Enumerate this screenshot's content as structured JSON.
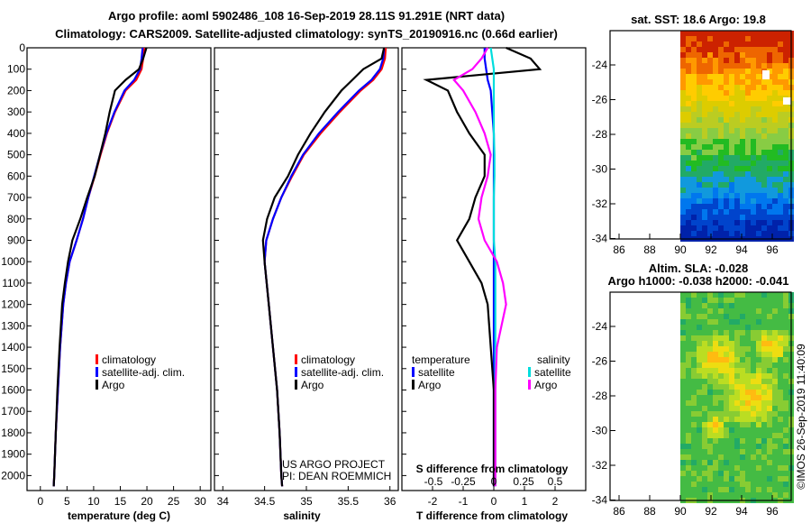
{
  "title_line1": "Argo profile: aoml 5902486_108 16-Sep-2019 28.11S 91.291E (NRT data)",
  "title_line2": "Climatology: CARS2009. Satellite-adjusted climatology: synTS_20190916.nc (0.66d earlier)",
  "depth_ticks": [
    0,
    100,
    200,
    300,
    400,
    500,
    600,
    700,
    800,
    900,
    1000,
    1100,
    1200,
    1300,
    1400,
    1500,
    1600,
    1700,
    1800,
    1900,
    2000
  ],
  "panels": {
    "temperature": {
      "xlabel": "temperature (deg C)",
      "xticks": [
        "0",
        "5",
        "10",
        "15",
        "20",
        "25",
        "30"
      ],
      "xlim": [
        -2.5,
        32
      ],
      "legend": [
        "climatology",
        "satellite-adj. clim.",
        "Argo"
      ],
      "chart_data": {
        "type": "line",
        "y_depth_dbar": [
          0,
          50,
          100,
          150,
          200,
          300,
          400,
          500,
          600,
          700,
          800,
          900,
          1000,
          1100,
          1200,
          1400,
          1600,
          1800,
          2000,
          2050
        ],
        "series": [
          {
            "name": "climatology",
            "color": "#ff0000",
            "x": [
              19.5,
              19.3,
              19.0,
              18.0,
              16.0,
              14.0,
              12.5,
              11.3,
              10.2,
              9.0,
              8.0,
              6.8,
              5.5,
              4.8,
              4.3,
              3.7,
              3.3,
              2.9,
              2.6,
              2.5
            ]
          },
          {
            "name": "satellite-adj. clim.",
            "color": "#0000ff",
            "x": [
              19.2,
              19.0,
              18.7,
              17.6,
              15.8,
              13.9,
              12.4,
              11.2,
              10.1,
              9.0,
              8.0,
              6.8,
              5.5,
              4.8,
              4.3,
              3.7,
              3.3,
              2.9,
              2.6,
              2.5
            ]
          },
          {
            "name": "Argo",
            "color": "#000000",
            "x": [
              19.9,
              19.3,
              18.5,
              16.0,
              14.0,
              13.0,
              12.2,
              11.2,
              10.2,
              8.8,
              7.5,
              6.0,
              5.2,
              4.6,
              4.1,
              3.6,
              3.2,
              2.9,
              2.6,
              2.5
            ]
          }
        ]
      }
    },
    "salinity": {
      "xlabel": "salinity",
      "xticks": [
        "34",
        "34.5",
        "35",
        "35.5",
        "36"
      ],
      "xlim": [
        33.9,
        36.1
      ],
      "legend": [
        "climatology",
        "satellite-adj. clim.",
        "Argo"
      ],
      "credit1": "US ARGO PROJECT",
      "credit2": "PI: DEAN ROEMMICH",
      "chart_data": {
        "type": "line",
        "y_depth_dbar": [
          0,
          50,
          100,
          150,
          200,
          300,
          400,
          500,
          600,
          700,
          800,
          900,
          1000,
          1200,
          1400,
          1600,
          1800,
          2000,
          2050
        ],
        "series": [
          {
            "name": "climatology",
            "color": "#ff0000",
            "x": [
              35.95,
              35.94,
              35.9,
              35.8,
              35.65,
              35.4,
              35.17,
              34.97,
              34.83,
              34.7,
              34.6,
              34.52,
              34.5,
              34.55,
              34.6,
              34.65,
              34.68,
              34.7,
              34.71
            ]
          },
          {
            "name": "satellite-adj. clim.",
            "color": "#0000ff",
            "x": [
              35.93,
              35.92,
              35.88,
              35.78,
              35.63,
              35.38,
              35.15,
              34.96,
              34.82,
              34.7,
              34.6,
              34.52,
              34.5,
              34.55,
              34.6,
              34.65,
              34.68,
              34.7,
              34.71
            ]
          },
          {
            "name": "Argo",
            "color": "#000000",
            "x": [
              35.93,
              35.9,
              35.68,
              35.55,
              35.42,
              35.22,
              35.05,
              34.9,
              34.78,
              34.62,
              34.53,
              34.48,
              34.5,
              34.55,
              34.6,
              34.65,
              34.68,
              34.7,
              34.71
            ]
          }
        ]
      }
    },
    "difference": {
      "xlabel": "T difference from climatology",
      "xticks": [
        "-2",
        "-1",
        "0",
        "1",
        "2"
      ],
      "xlim": [
        -3.0,
        3.0
      ],
      "sticks": [
        "-0.5",
        "-0.25",
        "0",
        "0.25",
        "0.5"
      ],
      "stitle": "S difference from climatology",
      "legend_temp_title": "temperature",
      "legend_sal_title": "salinity",
      "legend_temp": [
        "satellite",
        "Argo"
      ],
      "legend_sal": [
        "satellite",
        "Argo"
      ],
      "chart_data": {
        "type": "line",
        "y_depth_dbar": [
          0,
          50,
          100,
          150,
          200,
          300,
          400,
          500,
          600,
          700,
          800,
          900,
          1000,
          1100,
          1200,
          1400,
          1600,
          1800,
          2000,
          2050
        ],
        "series": [
          {
            "name": "temperature satellite",
            "color": "#0000ff",
            "x": [
              -0.3,
              -0.3,
              -0.25,
              -0.2,
              -0.1,
              -0.05,
              0,
              0,
              0,
              0,
              0,
              0,
              0,
              0,
              0,
              0,
              0,
              0,
              0,
              0
            ]
          },
          {
            "name": "temperature Argo",
            "color": "#000000",
            "x": [
              0.4,
              1.2,
              1.5,
              -2.2,
              -1.5,
              -1.2,
              -0.8,
              -0.3,
              -0.3,
              -0.6,
              -0.8,
              -1.2,
              -0.8,
              -0.4,
              -0.2,
              -0.1,
              0,
              0,
              0,
              0
            ]
          },
          {
            "name": "salinity satellite",
            "color": "#00dddd",
            "x": [
              -0.1,
              -0.05,
              0,
              0,
              0,
              0,
              0,
              0.02,
              0.02,
              0,
              0,
              0,
              0.05,
              0.05,
              0.05,
              0.05,
              0.05,
              0.05,
              0.05,
              0.05
            ]
          },
          {
            "name": "salinity Argo",
            "color": "#ff00ff",
            "x": [
              -0.2,
              -0.4,
              -0.7,
              -1.3,
              -1.0,
              -0.6,
              -0.3,
              -0.1,
              -0.2,
              -0.4,
              -0.5,
              -0.3,
              0.1,
              0.3,
              0.4,
              0.1,
              0.05,
              0.05,
              0.05,
              0.05
            ]
          }
        ]
      }
    }
  },
  "maps": {
    "sst": {
      "title": "sat. SST: 18.6 Argo: 19.8",
      "yticks": [
        "-24",
        "-26",
        "-28",
        "-30",
        "-32",
        "-34"
      ],
      "xticks": [
        "86",
        "88",
        "90",
        "92",
        "94",
        "96"
      ]
    },
    "sla": {
      "title1": "Altim. SLA: -0.028",
      "title2": "Argo h1000: -0.038 h2000: -0.041",
      "yticks": [
        "-24",
        "-26",
        "-28",
        "-30",
        "-32",
        "-34"
      ],
      "xticks": [
        "86",
        "88",
        "90",
        "92",
        "94",
        "96"
      ]
    }
  },
  "footer": "©IMOS 26-Sep-2019 11:40:09"
}
